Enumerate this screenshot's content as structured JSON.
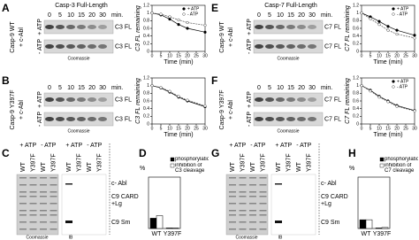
{
  "blots": [
    {
      "letter": "A",
      "title": "Casp-3 Full-Length",
      "times": [
        "0",
        "5",
        "10",
        "15",
        "20",
        "30"
      ],
      "unit": "min.",
      "construct": [
        "Casp-9 WT",
        "+ c-Abl"
      ],
      "conditions": [
        "+ ATP",
        "- ATP"
      ],
      "band_labels": [
        "C3 FL",
        "C3 FL"
      ],
      "footer": "Coomassie"
    },
    {
      "letter": "B",
      "times": [
        "0",
        "5",
        "10",
        "15",
        "20",
        "30"
      ],
      "unit": "min.",
      "construct": [
        "Casp-9 Y397F",
        "+ c-Abl"
      ],
      "conditions": [
        "+ ATP",
        "- ATP"
      ],
      "band_labels": [
        "C3 FL",
        "C3 FL"
      ],
      "footer": "Coomassie"
    },
    {
      "letter": "E",
      "title": "Casp-7 Full-Length",
      "times": [
        "0",
        "5",
        "10",
        "15",
        "20",
        "30"
      ],
      "unit": "min.",
      "construct": [
        "Casp-9 WT",
        "+ c-Abl"
      ],
      "conditions": [
        "+ ATP",
        "- ATP"
      ],
      "band_labels": [
        "C7 FL",
        "C7 FL"
      ],
      "footer": "Coomassie"
    },
    {
      "letter": "F",
      "times": [
        "0",
        "5",
        "10",
        "15",
        "20",
        "30"
      ],
      "unit": "min.",
      "construct": [
        "Casp-9 Y397F",
        "+ c-Abl"
      ],
      "conditions": [
        "+ ATP",
        "- ATP"
      ],
      "band_labels": [
        "C7 FL",
        "C7 FL"
      ],
      "footer": "Coomassie"
    }
  ],
  "gels": [
    {
      "letter": "C",
      "conditions": [
        "+ ATP",
        "- ATP",
        "+ ATP",
        "- ATP"
      ],
      "lanes": [
        "WT",
        "Y397F",
        "WT",
        "Y397F",
        "WT",
        "Y397F",
        "WT",
        "Y397F"
      ],
      "markers": [
        "c- Abl",
        "C9 CARD",
        "+Lg",
        "C9 Sm"
      ],
      "footers": [
        "Coomassie",
        "IB"
      ]
    },
    {
      "letter": "G",
      "conditions": [
        "+ ATP",
        "- ATP",
        "+ ATP",
        "- ATP"
      ],
      "lanes": [
        "WT",
        "Y397F",
        "WT",
        "Y397F",
        "WT",
        "Y397F",
        "WT",
        "Y397F"
      ],
      "markers": [
        "c- Abl",
        "C9 CARD",
        "+Lg",
        "C9 Sm"
      ],
      "footers": [
        "Coomassie",
        "IB"
      ]
    }
  ],
  "chart_data": [
    {
      "type": "line",
      "y_label": "C3 FL remaining",
      "x_label": "Time (min)",
      "x": [
        0,
        5,
        10,
        15,
        20,
        30
      ],
      "xlim": [
        0,
        30
      ],
      "xticks": [
        0,
        5,
        10,
        15,
        20,
        25,
        30
      ],
      "ylim": [
        0,
        1.2
      ],
      "yticks": [
        0,
        0.2,
        0.4,
        0.6,
        0.8,
        1,
        1.2
      ],
      "series": [
        {
          "name": "+ ATP",
          "color": "#000000",
          "marker": "filled",
          "values": [
            1,
            0.95,
            0.84,
            0.7,
            0.6,
            0.5
          ]
        },
        {
          "name": "- ATP",
          "color": "#555555",
          "marker": "open",
          "values": [
            1,
            0.97,
            0.9,
            0.82,
            0.75,
            0.68
          ]
        }
      ]
    },
    {
      "type": "line",
      "y_label": "C3 FL remaining",
      "x_label": "Time (min)",
      "x": [
        0,
        5,
        10,
        15,
        20,
        30
      ],
      "xlim": [
        0,
        30
      ],
      "xticks": [
        0,
        5,
        10,
        15,
        20,
        25,
        30
      ],
      "ylim": [
        0,
        1.2
      ],
      "yticks": [
        0,
        0.2,
        0.4,
        0.6,
        0.8,
        1,
        1.2
      ],
      "series": [
        {
          "color": "#000000",
          "marker": "filled",
          "values": [
            1,
            0.94,
            0.83,
            0.7,
            0.6,
            0.45
          ]
        },
        {
          "color": "#555555",
          "marker": "open",
          "values": [
            1,
            0.95,
            0.85,
            0.72,
            0.62,
            0.47
          ]
        }
      ]
    },
    {
      "type": "line",
      "y_label": "C7 FL remaining",
      "x_label": "Time (min)",
      "x": [
        0,
        5,
        10,
        15,
        20,
        30
      ],
      "xlim": [
        0,
        30
      ],
      "xticks": [
        0,
        5,
        10,
        15,
        20,
        25,
        30
      ],
      "ylim": [
        0,
        1.2
      ],
      "yticks": [
        0,
        0.2,
        0.4,
        0.6,
        0.8,
        1,
        1.2
      ],
      "series": [
        {
          "name": "+ ATP",
          "color": "#000000",
          "marker": "filled",
          "values": [
            1,
            0.9,
            0.78,
            0.65,
            0.55,
            0.42
          ]
        },
        {
          "name": "- ATP",
          "color": "#555555",
          "marker": "open",
          "values": [
            1,
            0.85,
            0.7,
            0.55,
            0.45,
            0.35
          ]
        }
      ]
    },
    {
      "type": "line",
      "y_label": "C7 FL remaining",
      "x_label": "Time (min)",
      "x": [
        0,
        5,
        10,
        15,
        20,
        30
      ],
      "xlim": [
        0,
        30
      ],
      "xticks": [
        0,
        5,
        10,
        15,
        20,
        25,
        30
      ],
      "ylim": [
        0,
        1.2
      ],
      "yticks": [
        0,
        0.2,
        0.4,
        0.6,
        0.8,
        1,
        1.2
      ],
      "series": [
        {
          "name": "+ ATP",
          "color": "#000000",
          "marker": "filled",
          "values": [
            1,
            0.88,
            0.72,
            0.6,
            0.48,
            0.35
          ]
        },
        {
          "name": "- ATP",
          "color": "#555555",
          "marker": "open",
          "values": [
            1,
            0.86,
            0.7,
            0.58,
            0.46,
            0.34
          ]
        }
      ]
    },
    {
      "type": "bar",
      "panel": "D",
      "y_label": "%",
      "categories": [
        "WT",
        "Y397F"
      ],
      "ylim": [
        0,
        100
      ],
      "series": [
        {
          "name": "phosphorylation",
          "color": "#000000",
          "values": [
            20,
            1
          ]
        },
        {
          "name": "inhibition of C3 cleavage",
          "color": "#ffffff",
          "values": [
            25,
            1
          ]
        }
      ]
    },
    {
      "type": "bar",
      "panel": "H",
      "y_label": "%",
      "categories": [
        "WT",
        "Y397F"
      ],
      "ylim": [
        0,
        100
      ],
      "series": [
        {
          "name": "phosphorylation",
          "color": "#000000",
          "values": [
            17,
            1
          ]
        },
        {
          "name": "inhibition of C7 cleavage",
          "color": "#ffffff",
          "values": [
            17,
            2
          ]
        }
      ]
    }
  ]
}
